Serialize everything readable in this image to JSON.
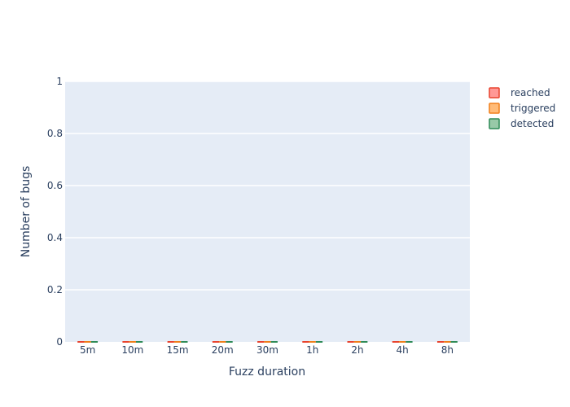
{
  "chart_data": {
    "type": "bar",
    "categories": [
      "5m",
      "10m",
      "15m",
      "20m",
      "30m",
      "1h",
      "2h",
      "4h",
      "8h"
    ],
    "series": [
      {
        "name": "reached",
        "values": [
          0,
          0,
          0,
          0,
          0,
          0,
          0,
          0,
          0
        ],
        "fill": "#ff9896",
        "stroke": "#e8432e"
      },
      {
        "name": "triggered",
        "values": [
          0,
          0,
          0,
          0,
          0,
          0,
          0,
          0,
          0
        ],
        "fill": "#ffbb78",
        "stroke": "#f07f1a"
      },
      {
        "name": "detected",
        "values": [
          0,
          0,
          0,
          0,
          0,
          0,
          0,
          0,
          0
        ],
        "fill": "#98c9a8",
        "stroke": "#2e8b57"
      }
    ],
    "xlabel": "Fuzz duration",
    "ylabel": "Number of bugs",
    "ylim": [
      0,
      1
    ],
    "yticks": [
      0,
      0.2,
      0.4,
      0.6,
      0.8,
      1
    ],
    "ytick_labels": [
      "0",
      "0.2",
      "0.4",
      "0.6",
      "0.8",
      "1"
    ],
    "grid": true,
    "legend_position": "top-right",
    "plot_background": "#e5ecf6"
  }
}
